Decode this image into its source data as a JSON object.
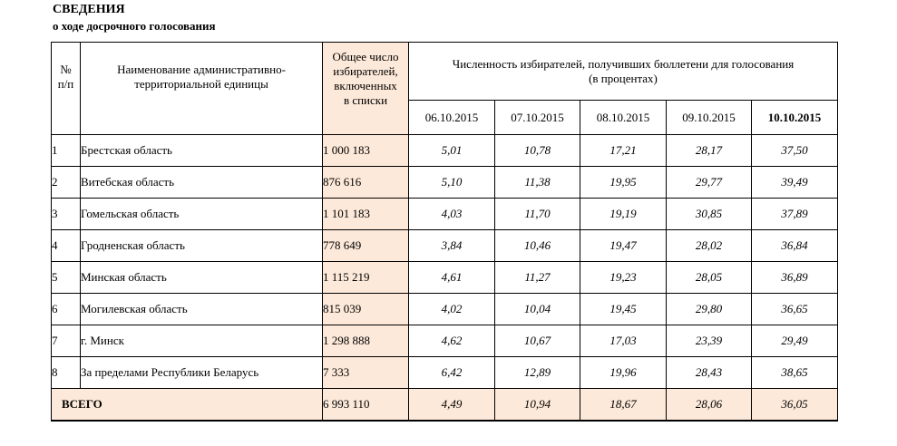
{
  "title": "СВЕДЕНИЯ",
  "subtitle": "о ходе досрочного голосования",
  "headers": {
    "num_line1": "№",
    "num_line2": "п/п",
    "name_line1": "Наименование административно-",
    "name_line2": "территориальной единицы",
    "total_line1": "Общее число",
    "total_line2": "избирателей,",
    "total_line3": "включенных",
    "total_line4": "в списки",
    "group_line1": "Численность избирателей, получивших бюллетени для голосования",
    "group_line2": "(в процентах)",
    "dates": [
      "06.10.2015",
      "07.10.2015",
      "08.10.2015",
      "09.10.2015",
      "10.10.2015"
    ]
  },
  "rows": [
    {
      "num": "1",
      "name": "Брестская область",
      "total": "1 000 183",
      "values": [
        "5,01",
        "10,78",
        "17,21",
        "28,17",
        "37,50"
      ]
    },
    {
      "num": "2",
      "name": "Витебская область",
      "total": "876 616",
      "values": [
        "5,10",
        "11,38",
        "19,95",
        "29,77",
        "39,49"
      ]
    },
    {
      "num": "3",
      "name": "Гомельская область",
      "total": "1 101 183",
      "values": [
        "4,03",
        "11,70",
        "19,19",
        "30,85",
        "37,89"
      ]
    },
    {
      "num": "4",
      "name": "Гродненская область",
      "total": "778 649",
      "values": [
        "3,84",
        "10,46",
        "19,47",
        "28,02",
        "36,84"
      ]
    },
    {
      "num": "5",
      "name": "Минская область",
      "total": "1 115 219",
      "values": [
        "4,61",
        "11,27",
        "19,23",
        "28,05",
        "36,89"
      ]
    },
    {
      "num": "6",
      "name": "Могилевская область",
      "total": "815 039",
      "values": [
        "4,02",
        "10,04",
        "19,45",
        "29,80",
        "36,65"
      ]
    },
    {
      "num": "7",
      "name": "г. Минск",
      "total": "1 298 888",
      "values": [
        "4,62",
        "10,67",
        "17,03",
        "23,39",
        "29,49"
      ]
    },
    {
      "num": "8",
      "name": "За пределами Республики Беларусь",
      "total": "7 333",
      "values": [
        "6,42",
        "12,89",
        "19,96",
        "28,43",
        "38,65"
      ]
    }
  ],
  "summary": {
    "label": "ВСЕГО",
    "total": "6 993 110",
    "values": [
      "4,49",
      "10,94",
      "18,67",
      "28,06",
      "36,05"
    ]
  },
  "colors": {
    "highlight": "#fde9d9"
  }
}
